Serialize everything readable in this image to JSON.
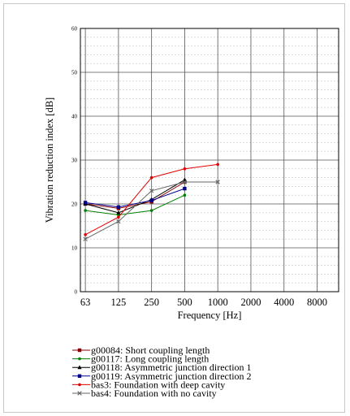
{
  "chart_data": {
    "type": "line",
    "xlabel": "Frequency [Hz]",
    "ylabel": "Vibration reduction index [dB]",
    "categories": [
      "63",
      "125",
      "250",
      "500",
      "1000",
      "2000",
      "4000",
      "8000"
    ],
    "ylim": [
      0,
      60
    ],
    "y_ticks": [
      "0",
      "10",
      "20",
      "30",
      "40",
      "50",
      "60"
    ],
    "x_scale": "log (octave bands)",
    "grid": {
      "major": true,
      "minor_y": true
    },
    "legend_position": "below",
    "series": [
      {
        "name": "g00084: Short coupling length",
        "color": "#8b0000",
        "marker": "square",
        "values": [
          20.0,
          19.0,
          20.5,
          25.0,
          null,
          null,
          null,
          null
        ]
      },
      {
        "name": "g00117: Long coupling length",
        "color": "#008000",
        "marker": "dot",
        "values": [
          18.5,
          17.5,
          18.5,
          22.0,
          null,
          null,
          null,
          null
        ]
      },
      {
        "name": "g00118: Asymmetric junction direction 1",
        "color": "#000000",
        "marker": "triangle",
        "values": [
          20.0,
          18.0,
          21.0,
          25.5,
          null,
          null,
          null,
          null
        ]
      },
      {
        "name": "g00119: Asymmetric junction direction 2",
        "color": "#00008b",
        "marker": "square",
        "values": [
          20.3,
          19.3,
          20.8,
          23.5,
          null,
          null,
          null,
          null
        ]
      },
      {
        "name": "bas3: Foundation with deep cavity",
        "color": "#e00000",
        "marker": "dot",
        "values": [
          13.0,
          17.0,
          26.0,
          28.0,
          29.0,
          null,
          null,
          null
        ]
      },
      {
        "name": "bas4: Foundation with no cavity",
        "color": "#666666",
        "marker": "x",
        "values": [
          12.0,
          16.0,
          23.0,
          25.0,
          25.0,
          null,
          null,
          null
        ]
      }
    ]
  }
}
